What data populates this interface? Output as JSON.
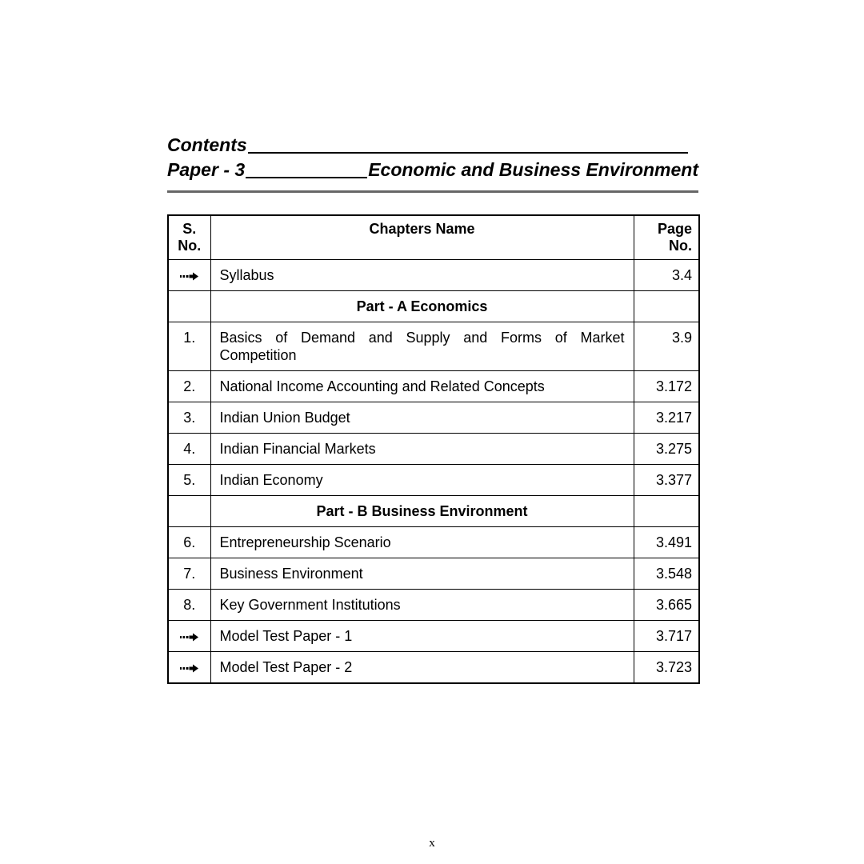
{
  "header": {
    "contents_label": "Contents",
    "paper_label": "Paper - 3",
    "paper_title": "Economic and Business Environment"
  },
  "table": {
    "headers": {
      "sno": "S.\nNo.",
      "chapter": "Chapters Name",
      "page": "Page\nNo."
    },
    "rows": [
      {
        "type": "item",
        "sno": "arrow-icon",
        "chapter": "Syllabus",
        "page": "3.4"
      },
      {
        "type": "section",
        "title": "Part - A Economics"
      },
      {
        "type": "item",
        "sno": "1.",
        "chapter": "Basics of Demand and Supply and Forms of Market Competition",
        "page": "3.9"
      },
      {
        "type": "item",
        "sno": "2.",
        "chapter": "National Income Accounting and Related Concepts",
        "page": "3.172"
      },
      {
        "type": "item",
        "sno": "3.",
        "chapter": "Indian Union Budget",
        "page": "3.217"
      },
      {
        "type": "item",
        "sno": "4.",
        "chapter": "Indian Financial Markets",
        "page": "3.275"
      },
      {
        "type": "item",
        "sno": "5.",
        "chapter": "Indian Economy",
        "page": "3.377"
      },
      {
        "type": "section",
        "title": "Part - B Business Environment"
      },
      {
        "type": "item",
        "sno": "6.",
        "chapter": "Entrepreneurship Scenario",
        "page": "3.491"
      },
      {
        "type": "item",
        "sno": "7.",
        "chapter": "Business Environment",
        "page": "3.548"
      },
      {
        "type": "item",
        "sno": "8.",
        "chapter": "Key Government Institutions",
        "page": "3.665"
      },
      {
        "type": "item",
        "sno": "arrow-icon",
        "chapter": "Model Test Paper - 1",
        "page": "3.717"
      },
      {
        "type": "item",
        "sno": "arrow-icon",
        "chapter": "Model Test Paper - 2",
        "page": "3.723"
      }
    ]
  },
  "footer": {
    "page_number": "x"
  },
  "colors": {
    "background": "#ffffff",
    "text": "#000000",
    "table_border": "#000000",
    "header_rule": "#666666"
  }
}
